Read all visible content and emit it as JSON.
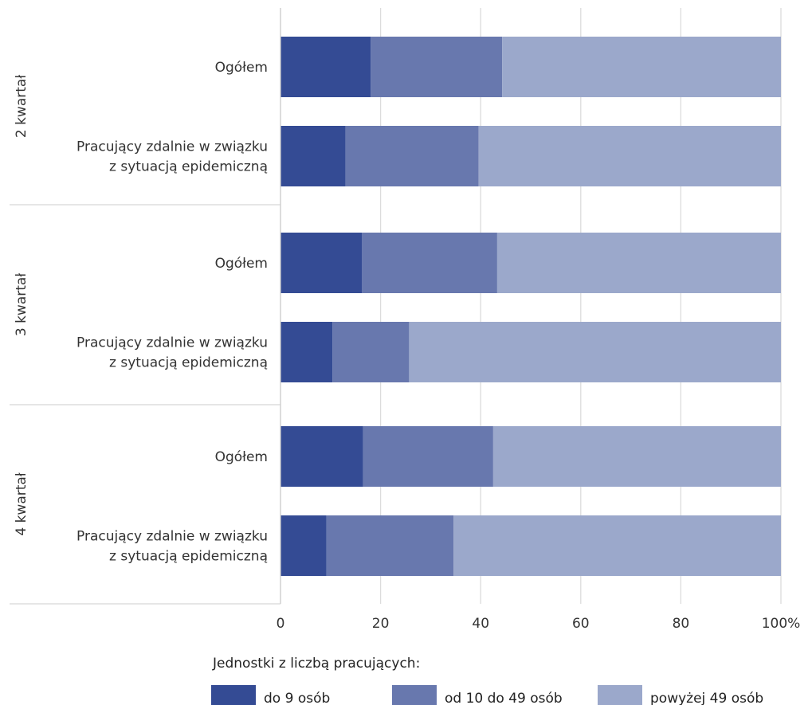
{
  "chart_data": {
    "type": "bar",
    "orientation": "horizontal",
    "stacked": true,
    "xlim": [
      0,
      100
    ],
    "x_ticks": [
      0,
      20,
      40,
      60,
      80,
      100
    ],
    "x_tick_labels": [
      "0",
      "20",
      "40",
      "60",
      "80",
      "100%"
    ],
    "grid": true,
    "legend_position": "bottom",
    "legend_title": "Jednostki z liczbą pracujących:",
    "groups": [
      {
        "label": "2 kwartał",
        "categories": [
          {
            "lines": [
              "Ogółem"
            ],
            "values": [
              18,
              26.3,
              55.7
            ]
          },
          {
            "lines": [
              "Pracujący zdalnie w związku",
              "z sytuacją epidemiczną"
            ],
            "values": [
              13,
              26.6,
              60.4
            ]
          }
        ]
      },
      {
        "label": "3 kwartał",
        "categories": [
          {
            "lines": [
              "Ogółem"
            ],
            "values": [
              16.3,
              27,
              56.7
            ]
          },
          {
            "lines": [
              "Pracujący zdalnie w związku",
              "z sytuacją epidemiczną"
            ],
            "values": [
              10.4,
              15.3,
              74.3
            ]
          }
        ]
      },
      {
        "label": "4 kwartał",
        "categories": [
          {
            "lines": [
              "Ogółem"
            ],
            "values": [
              16.5,
              26,
              57.5
            ]
          },
          {
            "lines": [
              "Pracujący zdalnie w związku",
              "z sytuacją epidemiczną"
            ],
            "values": [
              9.2,
              25.4,
              65.4
            ]
          }
        ]
      }
    ],
    "series": [
      {
        "name": "do 9 osób",
        "color": "#344b94"
      },
      {
        "name": "od 10 do 49 osób",
        "color": "#6878ae"
      },
      {
        "name": "powyżej 49 osób",
        "color": "#9ba8cb"
      }
    ]
  }
}
